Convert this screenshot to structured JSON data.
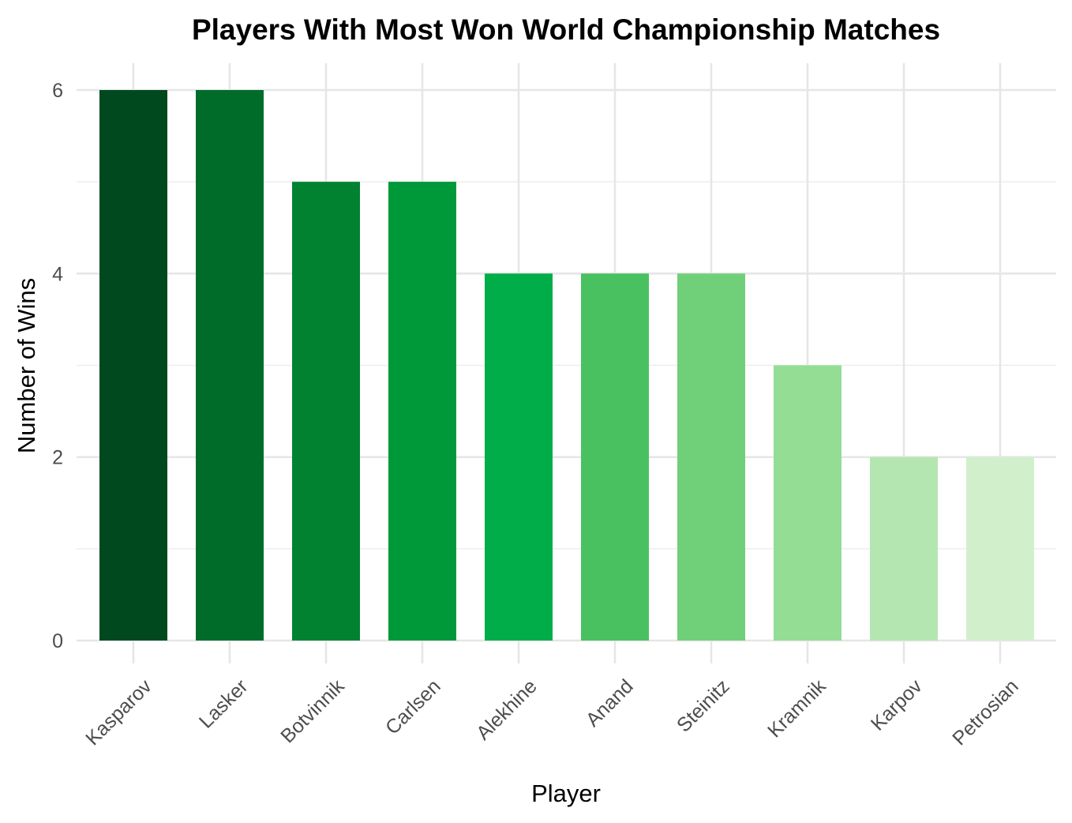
{
  "chart_data": {
    "type": "bar",
    "title": "Players With Most Won World Championship Matches",
    "xlabel": "Player",
    "ylabel": "Number of Wins",
    "categories": [
      "Kasparov",
      "Lasker",
      "Botvinnik",
      "Carlsen",
      "Alekhine",
      "Anand",
      "Steinitz",
      "Kramnik",
      "Karpov",
      "Petrosian"
    ],
    "values": [
      6,
      6,
      5,
      5,
      4,
      4,
      4,
      3,
      2,
      2
    ],
    "colors": [
      "#00491f",
      "#006c2a",
      "#008231",
      "#009939",
      "#00ad48",
      "#4ac161",
      "#70cf79",
      "#93dd95",
      "#b4e6b1",
      "#d2efcc"
    ],
    "ylim": [
      0,
      6
    ],
    "yticks": [
      0,
      2,
      4,
      6
    ],
    "grid": true,
    "legend": "none"
  }
}
